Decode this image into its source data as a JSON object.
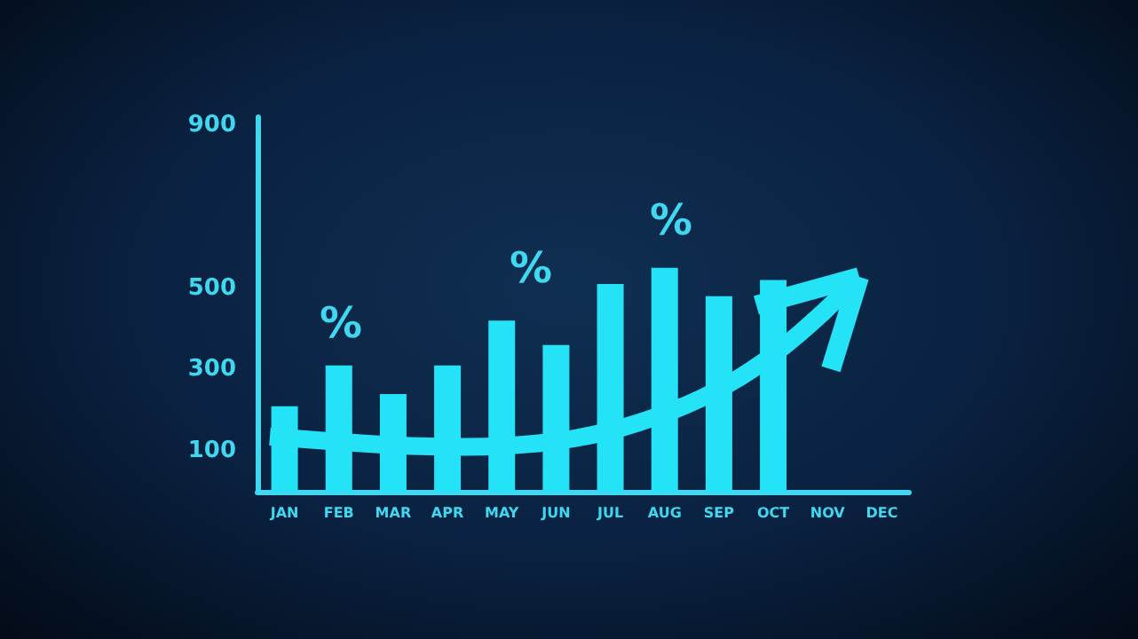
{
  "chart_data": {
    "type": "bar",
    "categories": [
      "JAN",
      "FEB",
      "MAR",
      "APR",
      "MAY",
      "JUN",
      "JUL",
      "AUG",
      "SEP",
      "OCT",
      "NOV",
      "DEC"
    ],
    "values": [
      210,
      310,
      240,
      310,
      420,
      360,
      510,
      550,
      480,
      520,
      null,
      null
    ],
    "color": "#25e3f7",
    "ylim": [
      0,
      920
    ],
    "yticks": [
      100,
      300,
      500,
      900
    ],
    "grid": false,
    "annotations": [
      "%",
      "%",
      "%"
    ]
  }
}
